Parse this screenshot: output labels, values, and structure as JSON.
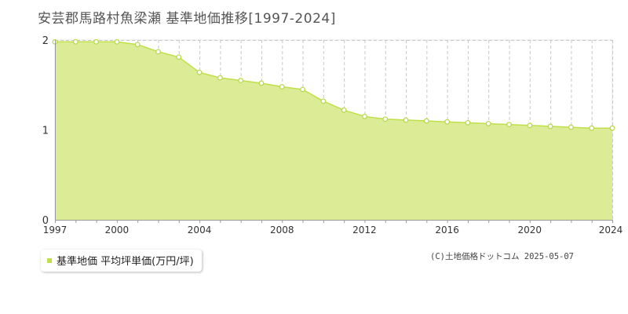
{
  "title": "安芸郡馬路村魚梁瀬 基準地価推移[1997-2024]",
  "credit": "(C)土地価格ドットコム 2025-05-07",
  "legend": {
    "label": "基準地価 平均坪単価(万円/坪)"
  },
  "colors": {
    "fill": "#dbeb96",
    "line": "#bfe04a",
    "marker_fill": "#ffffff",
    "marker_stroke": "#b6d84a",
    "grid": "#c8c8c8",
    "axis": "#999999"
  },
  "chart_data": {
    "type": "area",
    "title": "安芸郡馬路村魚梁瀬 基準地価推移[1997-2024]",
    "xlabel": "",
    "ylabel": "",
    "xlim": [
      1997,
      2024
    ],
    "ylim": [
      0,
      2
    ],
    "x_ticks": [
      1997,
      2000,
      2004,
      2008,
      2012,
      2016,
      2020,
      2024
    ],
    "y_ticks": [
      0,
      1,
      2
    ],
    "grid": true,
    "legend_position": "bottom-left",
    "x": [
      1997,
      1998,
      1999,
      2000,
      2001,
      2002,
      2003,
      2004,
      2005,
      2006,
      2007,
      2008,
      2009,
      2010,
      2011,
      2012,
      2013,
      2014,
      2015,
      2016,
      2017,
      2018,
      2019,
      2020,
      2021,
      2022,
      2023,
      2024
    ],
    "series": [
      {
        "name": "基準地価 平均坪単価(万円/坪)",
        "values": [
          1.98,
          1.98,
          1.98,
          1.98,
          1.95,
          1.87,
          1.81,
          1.64,
          1.58,
          1.55,
          1.52,
          1.48,
          1.45,
          1.32,
          1.22,
          1.15,
          1.12,
          1.11,
          1.1,
          1.09,
          1.08,
          1.07,
          1.06,
          1.05,
          1.04,
          1.03,
          1.02,
          1.02
        ]
      }
    ]
  }
}
